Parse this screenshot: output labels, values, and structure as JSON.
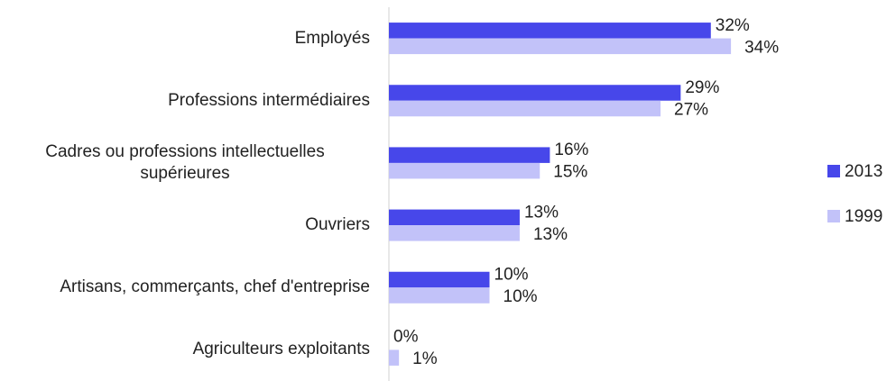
{
  "chart_data": {
    "type": "hbar",
    "categories": [
      "Employés",
      "Professions intermédiaires",
      "Cadres ou professions intellectuelles supérieures",
      "Ouvriers",
      "Artisans, commerçants, chef d'entreprise",
      "Agriculteurs exploitants"
    ],
    "series": [
      {
        "name": "2013",
        "color": "#4747ea",
        "values": [
          32,
          29,
          16,
          13,
          10,
          0
        ],
        "value_labels": [
          "32%",
          "29%",
          "16%",
          "13%",
          "10%",
          "0%"
        ]
      },
      {
        "name": "1999",
        "color": "#c2c2f9",
        "values": [
          34,
          27,
          15,
          13,
          10,
          1
        ],
        "value_labels": [
          "34%",
          "27%",
          "15%",
          "13%",
          "10%",
          "1%"
        ]
      }
    ],
    "xlim": [
      0,
      40
    ],
    "legend": "right"
  }
}
